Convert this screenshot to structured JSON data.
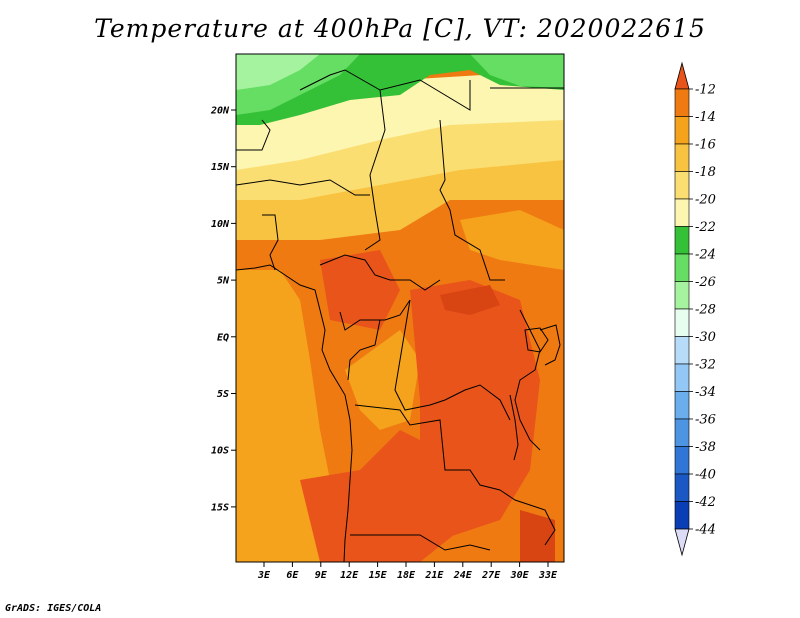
{
  "title": "Temperature at 400hPa [C], VT: 2020022615",
  "credit": "GrADS: IGES/COLA",
  "lat_labels": [
    "20N",
    "15N",
    "10N",
    "5N",
    "EQ",
    "5S",
    "10S",
    "15S"
  ],
  "lon_labels": [
    "3E",
    "6E",
    "9E",
    "12E",
    "15E",
    "18E",
    "21E",
    "24E",
    "27E",
    "30E",
    "33E"
  ],
  "colorbar": {
    "labels": [
      "-12",
      "-14",
      "-16",
      "-18",
      "-20",
      "-22",
      "-24",
      "-26",
      "-28",
      "-30",
      "-32",
      "-34",
      "-36",
      "-38",
      "-40",
      "-42",
      "-44"
    ],
    "colors": [
      "#e8541a",
      "#f07a12",
      "#f5a31c",
      "#f9c342",
      "#fbde72",
      "#fdf6b0",
      "#35c137",
      "#66dd63",
      "#a5f39e",
      "#e6fdef",
      "#b7dcf9",
      "#93c7f5",
      "#6aaeed",
      "#4d94e2",
      "#3176d6",
      "#1c58c3",
      "#0a3eb5"
    ],
    "top_arrow_color": "#e8541a",
    "bottom_arrow_color": "#0d1577",
    "bottom_arrow_fill": "#dcdcf7"
  },
  "colors": {
    "hot": "#e8541a",
    "warm": "#f07a12",
    "mild": "#f5a31c",
    "cool": "#f9c342",
    "cooler": "#fbde72",
    "pale": "#fdf6b0",
    "green": "#35c137",
    "light_green": "#66dd63",
    "pale_green": "#a5f39e",
    "border": "#000000"
  }
}
